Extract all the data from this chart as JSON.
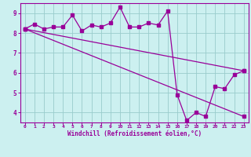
{
  "background_color": "#cceeff",
  "plot_bg_color": "#ccf0f0",
  "line_color": "#990099",
  "grid_color": "#99cccc",
  "spine_color": "#990099",
  "xlabel": "Windchill (Refroidissement éolien,°C)",
  "xlabel_color": "#990099",
  "tick_color": "#990099",
  "xlim": [
    -0.5,
    23.5
  ],
  "ylim": [
    3.5,
    9.5
  ],
  "yticks": [
    4,
    5,
    6,
    7,
    8,
    9
  ],
  "xticks": [
    0,
    1,
    2,
    3,
    4,
    5,
    6,
    7,
    8,
    9,
    10,
    11,
    12,
    13,
    14,
    15,
    16,
    17,
    18,
    19,
    20,
    21,
    22,
    23
  ],
  "series1_x": [
    0,
    1,
    2,
    3,
    4,
    5,
    6,
    7,
    8,
    9,
    10,
    11,
    12,
    13,
    14,
    15,
    16,
    17,
    18,
    19,
    20,
    21,
    22,
    23
  ],
  "series1_y": [
    8.2,
    8.45,
    8.2,
    8.3,
    8.3,
    8.9,
    8.1,
    8.4,
    8.3,
    8.5,
    9.3,
    8.3,
    8.3,
    8.5,
    8.4,
    9.1,
    4.9,
    3.6,
    4.0,
    3.8,
    5.3,
    5.2,
    5.9,
    6.1
  ],
  "series2_x": [
    0,
    23
  ],
  "series2_y": [
    8.2,
    6.1
  ],
  "series3_x": [
    0,
    23
  ],
  "series3_y": [
    8.2,
    3.8
  ],
  "markersize": 2.5,
  "linewidth": 0.9
}
